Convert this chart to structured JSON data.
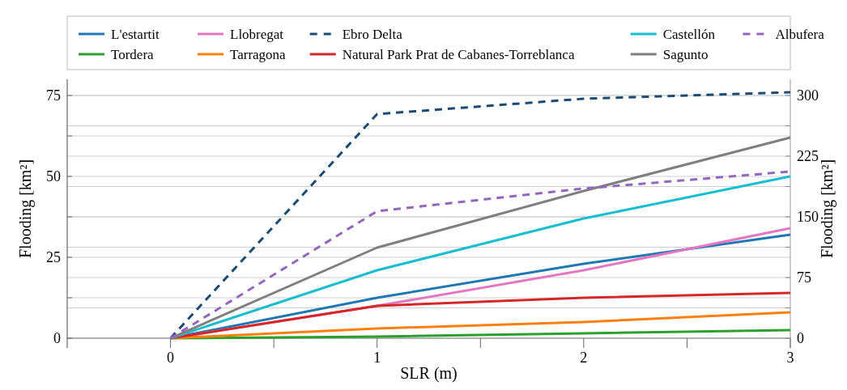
{
  "chart_data": {
    "type": "line",
    "xlabel": "SLR (m)",
    "ylabel": "Flooding [km²]",
    "y2label": "Flooding [km²]",
    "x": [
      0,
      1,
      2,
      3
    ],
    "xlim": [
      -0.5,
      3
    ],
    "xticks": [
      0,
      {
        "value": 0.5,
        "label": null
      },
      1,
      {
        "value": 1.5,
        "label": null
      },
      2,
      {
        "value": 2.5,
        "label": null
      },
      3
    ],
    "ylim": [
      0,
      80
    ],
    "yticks": [
      0,
      {
        "value": 12.5,
        "label": null
      },
      25,
      {
        "value": 37.5,
        "label": null
      },
      50,
      {
        "value": 62.5,
        "label": null
      },
      75
    ],
    "y2lim": [
      0,
      320
    ],
    "y2ticks": [
      0,
      {
        "value": 37.5,
        "label": null
      },
      75,
      {
        "value": 112.5,
        "label": null
      },
      150,
      {
        "value": 187.5,
        "label": null
      },
      225,
      {
        "value": 262.5,
        "label": null
      },
      300
    ],
    "grid": "y",
    "legend": "top",
    "line_style": "solid",
    "series": [
      {
        "name": "L'estartit",
        "color": "#1f77b4",
        "values": [
          0,
          12.5,
          23,
          32
        ]
      },
      {
        "name": "Tordera",
        "color": "#2ca02c",
        "values": [
          0,
          0.5,
          1.5,
          2.5
        ]
      },
      {
        "name": "Llobregat",
        "color": "#e377c2",
        "values": [
          0,
          10,
          21,
          34
        ]
      },
      {
        "name": "Tarragona",
        "color": "#ff7f0e",
        "values": [
          0,
          3,
          5,
          8
        ]
      },
      {
        "name": "Ebro Delta",
        "color": "#1b4a72",
        "axis": "y2",
        "line_style": "dashed",
        "values": [
          0,
          277,
          296,
          304
        ]
      },
      {
        "name": "Natural Park Prat de Cabanes-Torreblanca",
        "color": "#d62728",
        "values": [
          0,
          10,
          12.5,
          14
        ]
      },
      {
        "name": "Castellón",
        "color": "#17becf",
        "values": [
          0,
          21,
          37,
          50
        ]
      },
      {
        "name": "Sagunto",
        "color": "#7f7f7f",
        "values": [
          0,
          28,
          45.5,
          62
        ]
      },
      {
        "name": "Albufera",
        "color": "#9467bd",
        "axis": "y2",
        "line_style": "dashed",
        "values": [
          0,
          157,
          185,
          206
        ]
      }
    ]
  }
}
